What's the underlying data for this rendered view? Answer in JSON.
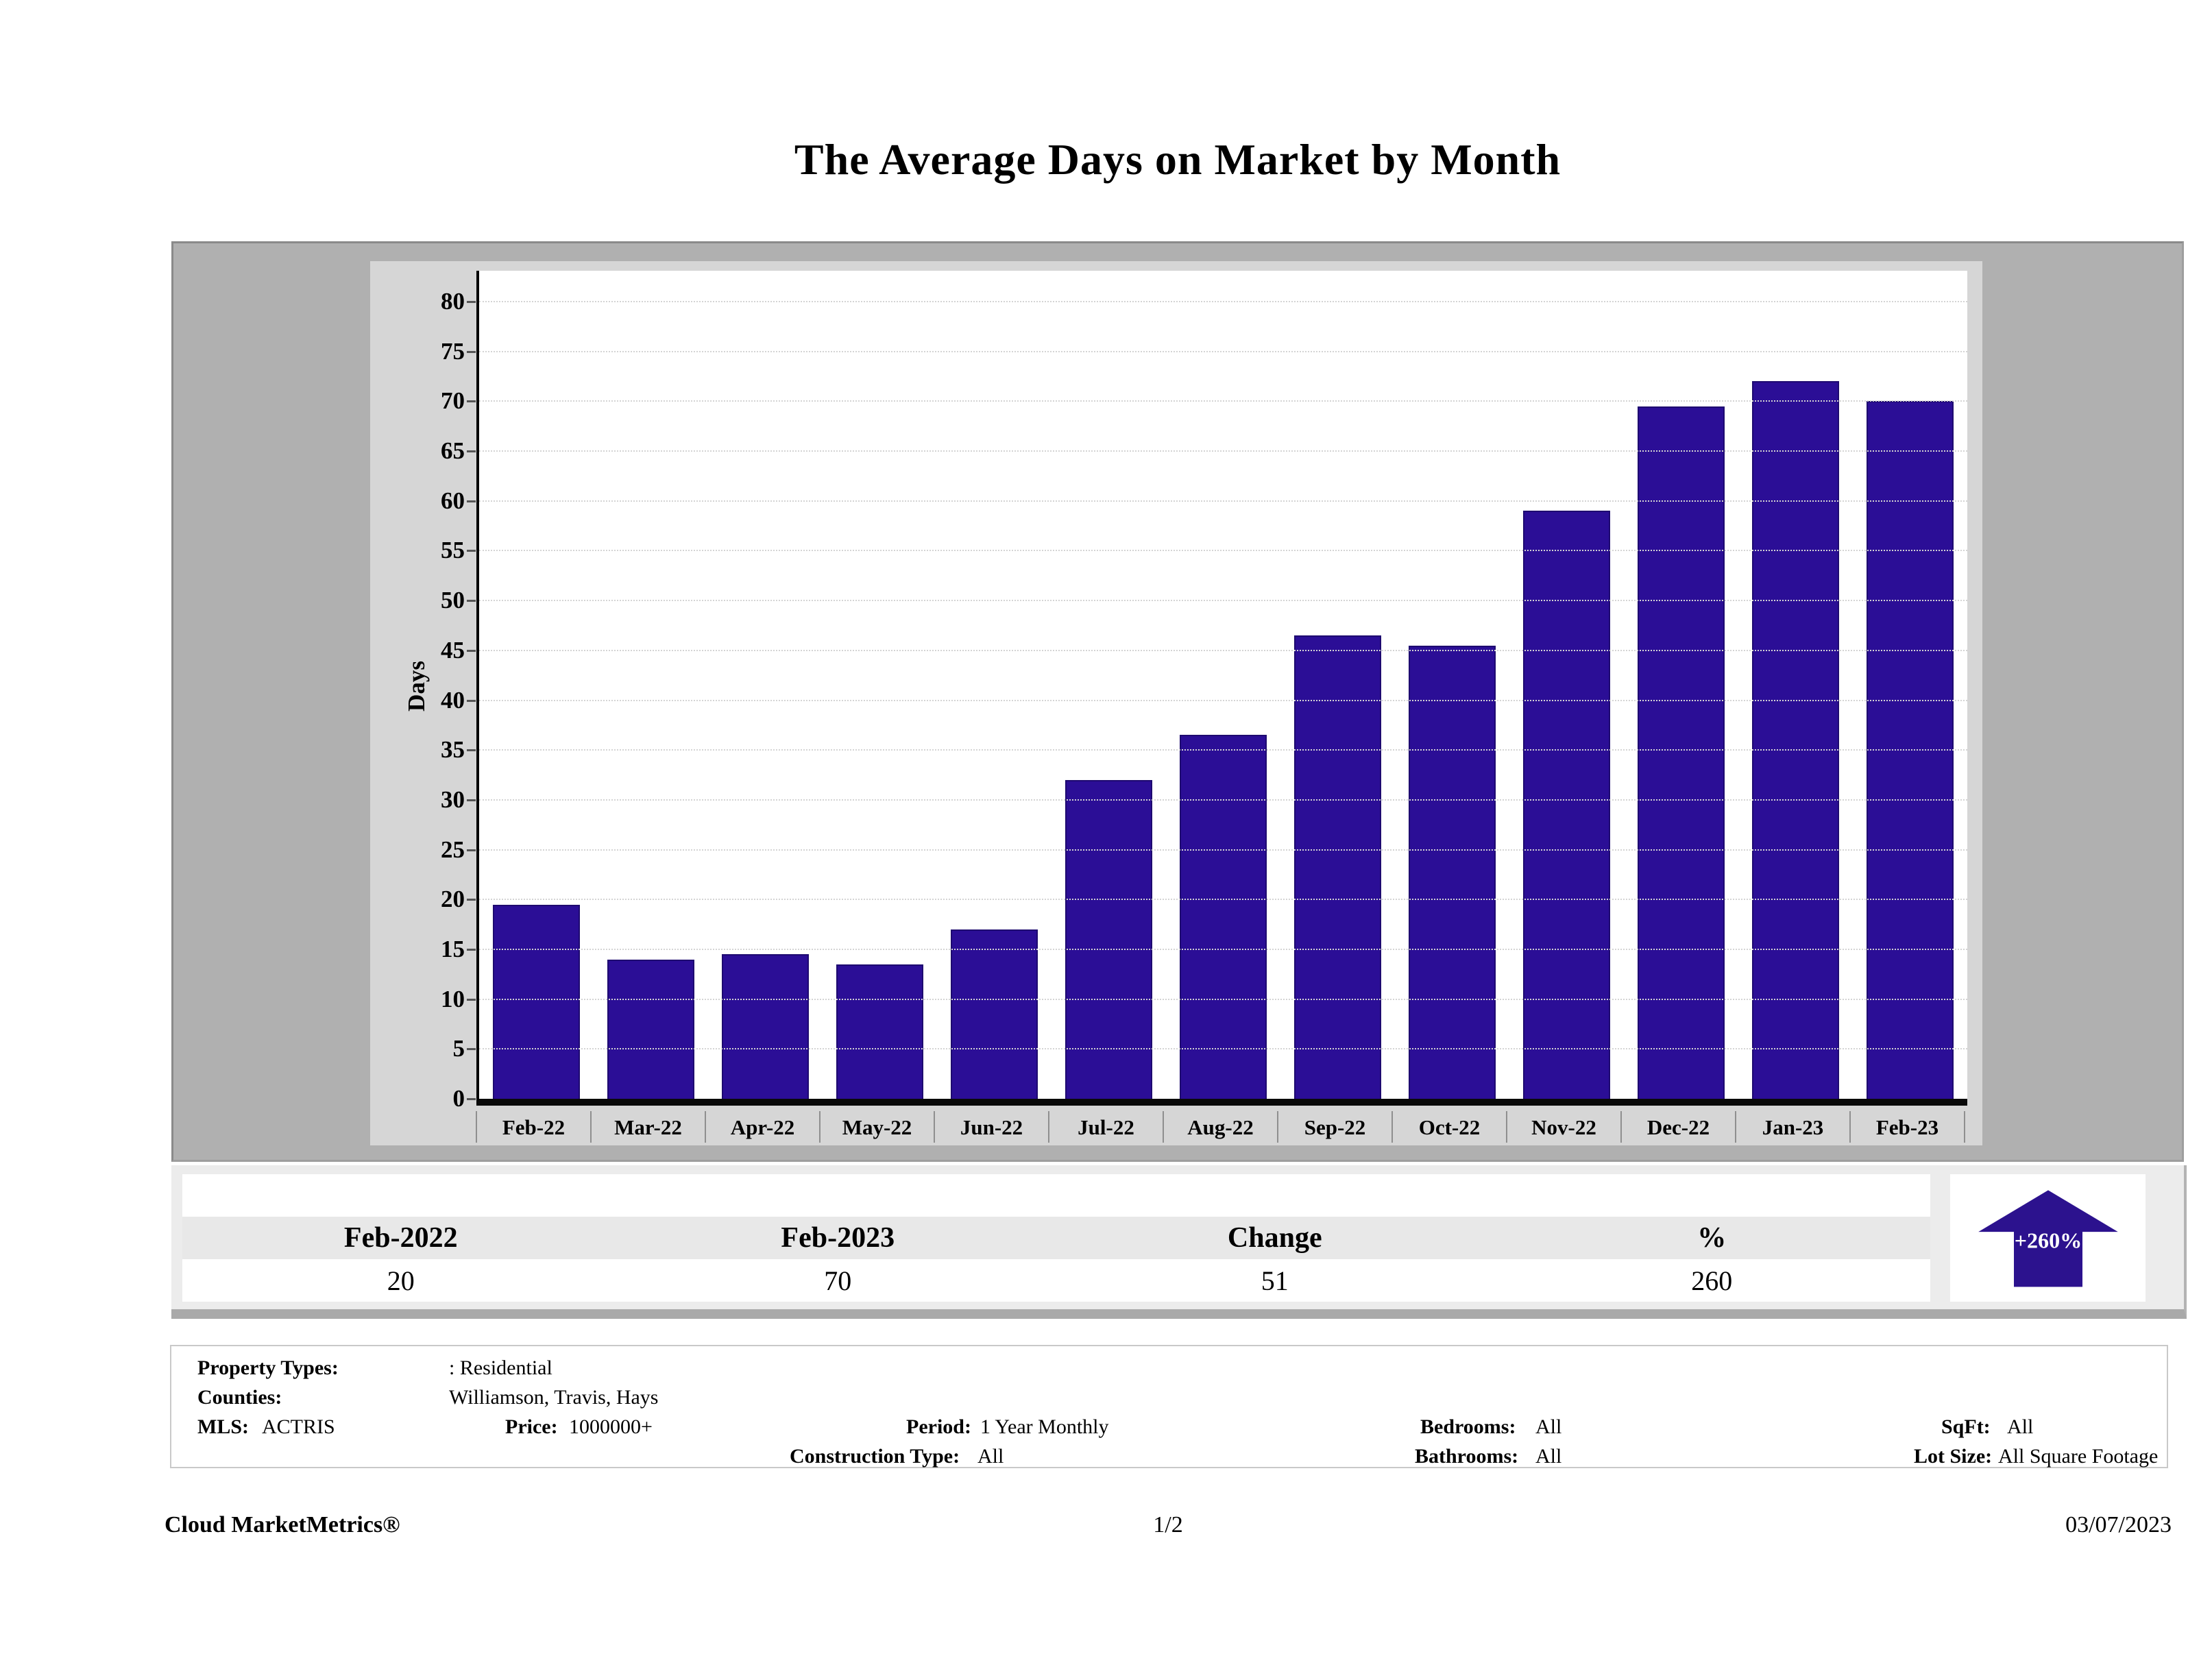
{
  "title": "The Average Days on Market by Month",
  "chart_data": {
    "type": "bar",
    "categories": [
      "Feb-22",
      "Mar-22",
      "Apr-22",
      "May-22",
      "Jun-22",
      "Jul-22",
      "Aug-22",
      "Sep-22",
      "Oct-22",
      "Nov-22",
      "Dec-22",
      "Jan-23",
      "Feb-23"
    ],
    "values": [
      19.5,
      14,
      14.5,
      13.5,
      17,
      32,
      36.5,
      46.5,
      45.5,
      59,
      69.5,
      72,
      70
    ],
    "title": "The Average Days on Market by Month",
    "xlabel": "",
    "ylabel": "Days",
    "ylim": [
      0,
      80
    ],
    "ytick_step": 5,
    "grid": true,
    "legend": "none",
    "bar_color": "#2b0e96"
  },
  "summary_table": {
    "columns": [
      "Feb-2022",
      "Feb-2023",
      "Change",
      "%"
    ],
    "values": [
      "20",
      "70",
      "51",
      "260"
    ]
  },
  "change_badge": {
    "label": "+260%",
    "direction": "up",
    "color": "#2c128e",
    "text_color": "#ffffff"
  },
  "filters": {
    "property_types_label": "Property Types:",
    "property_types_value": ": Residential",
    "counties_label": "Counties:",
    "counties_value": "Williamson, Travis, Hays",
    "mls_label": "MLS:",
    "mls_value": "ACTRIS",
    "price_label": "Price:",
    "price_value": "1000000+",
    "period_label": "Period:",
    "period_value": "1 Year Monthly",
    "construction_label": "Construction Type:",
    "construction_value": "All",
    "bedrooms_label": "Bedrooms:",
    "bedrooms_value": "All",
    "bathrooms_label": "Bathrooms:",
    "bathrooms_value": "All",
    "sqft_label": "SqFt:",
    "sqft_value": "All",
    "lot_size_label": "Lot Size:",
    "lot_size_value": "All Square Footage"
  },
  "footer": {
    "brand": "Cloud MarketMetrics®",
    "page": "1/2",
    "date": "03/07/2023"
  }
}
